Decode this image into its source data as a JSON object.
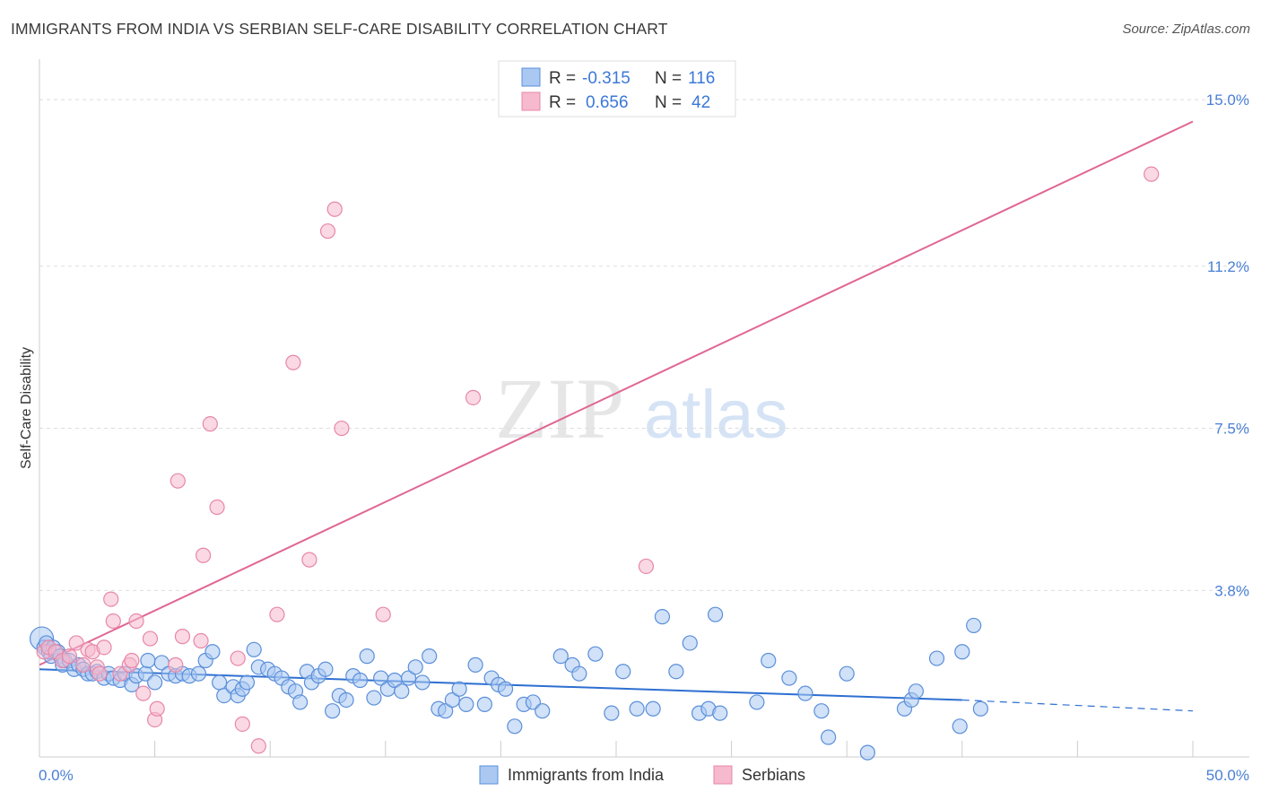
{
  "title": "IMMIGRANTS FROM INDIA VS SERBIAN SELF-CARE DISABILITY CORRELATION CHART",
  "source": "Source: ZipAtlas.com",
  "watermark": {
    "zip": "ZIP",
    "atlas": "atlas"
  },
  "legend": {
    "rows": [
      {
        "r_label": "R = ",
        "r_value": "-0.315",
        "n_label": "N = ",
        "n_value": "116"
      },
      {
        "r_label": "R = ",
        "r_value": "0.656",
        "n_label": "N = ",
        "n_value": "42"
      }
    ]
  },
  "colors": {
    "blue_fill": "#aac8f2",
    "blue_stroke": "#5b8fd9",
    "blue_line": "#2e6fd1",
    "pink_fill": "#f6b9cd",
    "pink_stroke": "#e887a8",
    "pink_line": "#e06694",
    "tick_text": "#4a7fd4",
    "grid": "#dddddd"
  },
  "chart_data": {
    "type": "scatter",
    "title": "IMMIGRANTS FROM INDIA VS SERBIAN SELF-CARE DISABILITY CORRELATION CHART",
    "xlabel": "",
    "ylabel": "Self-Care Disability",
    "xlim": [
      0,
      50
    ],
    "ylim": [
      0,
      15.8
    ],
    "x_tick_labels": [
      "0.0%",
      "50.0%"
    ],
    "y_ticks": [
      3.8,
      7.5,
      11.2,
      15.0
    ],
    "y_tick_labels": [
      "3.8%",
      "7.5%",
      "11.2%",
      "15.0%"
    ],
    "grid": "horizontal dashed",
    "legend_position": "top-center",
    "series": [
      {
        "name": "Immigrants from India",
        "r": -0.315,
        "n": 116,
        "trend": {
          "x0": 0,
          "y0": 2.0,
          "x1": 40,
          "y1": 1.3,
          "dashed_to": 50,
          "dashed_y": 1.05
        },
        "points": [
          [
            0.1,
            2.7
          ],
          [
            0.2,
            2.5
          ],
          [
            0.3,
            2.6
          ],
          [
            0.4,
            2.4
          ],
          [
            0.5,
            2.3
          ],
          [
            0.6,
            2.5
          ],
          [
            0.8,
            2.4
          ],
          [
            0.9,
            2.3
          ],
          [
            1.0,
            2.1
          ],
          [
            1.1,
            2.2
          ],
          [
            1.3,
            2.2
          ],
          [
            1.5,
            2.0
          ],
          [
            1.7,
            2.1
          ],
          [
            1.9,
            2.0
          ],
          [
            2.1,
            1.9
          ],
          [
            2.3,
            1.9
          ],
          [
            2.5,
            1.95
          ],
          [
            2.8,
            1.8
          ],
          [
            3.0,
            1.9
          ],
          [
            3.2,
            1.8
          ],
          [
            3.5,
            1.75
          ],
          [
            3.7,
            1.9
          ],
          [
            4.0,
            1.65
          ],
          [
            4.2,
            1.85
          ],
          [
            4.6,
            1.9
          ],
          [
            4.7,
            2.2
          ],
          [
            5.0,
            1.7
          ],
          [
            5.3,
            2.15
          ],
          [
            5.6,
            1.9
          ],
          [
            5.9,
            1.85
          ],
          [
            6.2,
            1.9
          ],
          [
            6.5,
            1.85
          ],
          [
            6.9,
            1.9
          ],
          [
            7.2,
            2.2
          ],
          [
            7.5,
            2.4
          ],
          [
            7.8,
            1.7
          ],
          [
            8.0,
            1.4
          ],
          [
            8.4,
            1.6
          ],
          [
            8.6,
            1.4
          ],
          [
            8.8,
            1.55
          ],
          [
            9.0,
            1.7
          ],
          [
            9.3,
            2.45
          ],
          [
            9.5,
            2.05
          ],
          [
            9.9,
            2.0
          ],
          [
            10.2,
            1.9
          ],
          [
            10.5,
            1.8
          ],
          [
            10.8,
            1.6
          ],
          [
            11.1,
            1.5
          ],
          [
            11.3,
            1.25
          ],
          [
            11.6,
            1.95
          ],
          [
            11.8,
            1.7
          ],
          [
            12.1,
            1.85
          ],
          [
            12.4,
            2.0
          ],
          [
            12.7,
            1.05
          ],
          [
            13.0,
            1.4
          ],
          [
            13.3,
            1.3
          ],
          [
            13.6,
            1.85
          ],
          [
            13.9,
            1.75
          ],
          [
            14.2,
            2.3
          ],
          [
            14.5,
            1.35
          ],
          [
            14.8,
            1.8
          ],
          [
            15.1,
            1.55
          ],
          [
            15.4,
            1.75
          ],
          [
            15.7,
            1.5
          ],
          [
            16.0,
            1.8
          ],
          [
            16.3,
            2.05
          ],
          [
            16.6,
            1.7
          ],
          [
            16.9,
            2.3
          ],
          [
            17.3,
            1.1
          ],
          [
            17.6,
            1.05
          ],
          [
            17.9,
            1.3
          ],
          [
            18.2,
            1.55
          ],
          [
            18.5,
            1.2
          ],
          [
            18.9,
            2.1
          ],
          [
            19.3,
            1.2
          ],
          [
            19.6,
            1.8
          ],
          [
            19.9,
            1.65
          ],
          [
            20.2,
            1.55
          ],
          [
            20.6,
            0.7
          ],
          [
            21.0,
            1.2
          ],
          [
            21.4,
            1.25
          ],
          [
            21.8,
            1.05
          ],
          [
            22.6,
            2.3
          ],
          [
            23.1,
            2.1
          ],
          [
            23.4,
            1.9
          ],
          [
            24.1,
            2.35
          ],
          [
            24.8,
            1.0
          ],
          [
            25.3,
            1.95
          ],
          [
            25.9,
            1.1
          ],
          [
            26.6,
            1.1
          ],
          [
            27.0,
            3.2
          ],
          [
            27.6,
            1.95
          ],
          [
            28.2,
            2.6
          ],
          [
            28.6,
            1.0
          ],
          [
            29.0,
            1.1
          ],
          [
            29.3,
            3.25
          ],
          [
            29.5,
            1.0
          ],
          [
            31.1,
            1.25
          ],
          [
            31.6,
            2.2
          ],
          [
            32.5,
            1.8
          ],
          [
            33.2,
            1.45
          ],
          [
            33.9,
            1.05
          ],
          [
            34.2,
            0.45
          ],
          [
            35.0,
            1.9
          ],
          [
            35.9,
            0.1
          ],
          [
            37.5,
            1.1
          ],
          [
            37.8,
            1.3
          ],
          [
            38.0,
            1.5
          ],
          [
            38.9,
            2.25
          ],
          [
            39.9,
            0.7
          ],
          [
            40.0,
            2.4
          ],
          [
            40.5,
            3.0
          ],
          [
            40.8,
            1.1
          ]
        ]
      },
      {
        "name": "Serbians",
        "r": 0.656,
        "n": 42,
        "trend": {
          "x0": 0,
          "y0": 2.1,
          "x1": 50,
          "y1": 14.5
        },
        "points": [
          [
            0.2,
            2.4
          ],
          [
            0.4,
            2.5
          ],
          [
            0.7,
            2.4
          ],
          [
            1.0,
            2.2
          ],
          [
            1.3,
            2.3
          ],
          [
            1.6,
            2.6
          ],
          [
            1.9,
            2.1
          ],
          [
            2.1,
            2.45
          ],
          [
            2.3,
            2.4
          ],
          [
            2.5,
            2.05
          ],
          [
            2.6,
            1.9
          ],
          [
            2.8,
            2.5
          ],
          [
            3.1,
            3.6
          ],
          [
            3.2,
            3.1
          ],
          [
            3.5,
            1.9
          ],
          [
            3.9,
            2.1
          ],
          [
            4.0,
            2.2
          ],
          [
            4.2,
            3.1
          ],
          [
            4.5,
            1.45
          ],
          [
            4.8,
            2.7
          ],
          [
            5.0,
            0.85
          ],
          [
            5.1,
            1.1
          ],
          [
            5.9,
            2.1
          ],
          [
            6.0,
            6.3
          ],
          [
            6.2,
            2.75
          ],
          [
            7.0,
            2.65
          ],
          [
            7.1,
            4.6
          ],
          [
            7.4,
            7.6
          ],
          [
            7.7,
            5.7
          ],
          [
            8.6,
            2.25
          ],
          [
            8.8,
            0.75
          ],
          [
            9.5,
            0.25
          ],
          [
            10.3,
            3.25
          ],
          [
            11.0,
            9.0
          ],
          [
            11.7,
            4.5
          ],
          [
            12.5,
            12.0
          ],
          [
            12.8,
            12.5
          ],
          [
            13.1,
            7.5
          ],
          [
            14.9,
            3.25
          ],
          [
            18.8,
            8.2
          ],
          [
            26.3,
            4.35
          ],
          [
            48.2,
            13.3
          ]
        ]
      }
    ]
  },
  "bottom_legend": [
    "Immigrants from India",
    "Serbians"
  ]
}
